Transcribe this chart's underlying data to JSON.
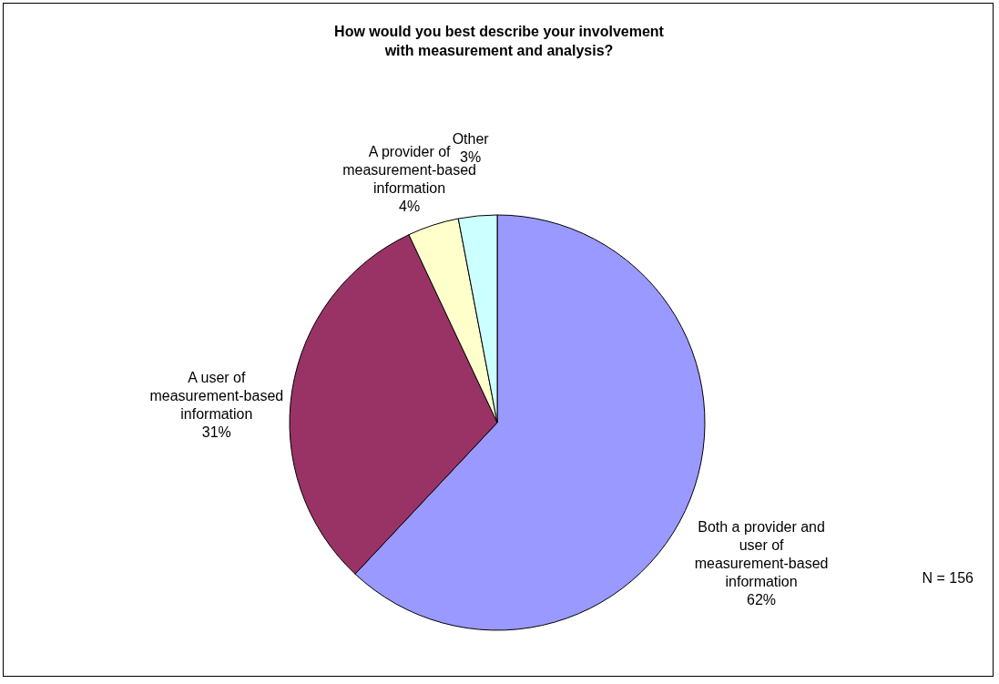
{
  "chart_data": {
    "type": "pie",
    "title": "How would you best describe your involvement with measurement and analysis?",
    "categories": [
      "Both a provider and user of measurement-based information",
      "A user of measurement-based information",
      "A provider of measurement-based information",
      "Other"
    ],
    "values": [
      62,
      31,
      4,
      3
    ],
    "colors": [
      "#9999ff",
      "#993366",
      "#ffffcc",
      "#ccffff"
    ],
    "value_labels": [
      "62%",
      "31%",
      "4%",
      "3%"
    ],
    "legend": false,
    "annotations": [
      "N = 156"
    ]
  }
}
